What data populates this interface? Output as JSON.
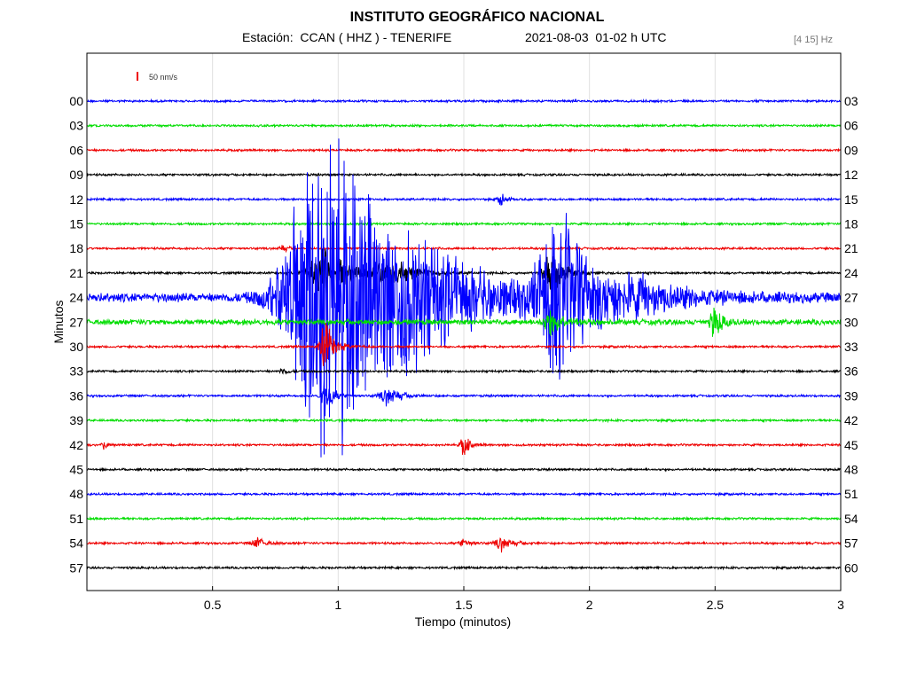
{
  "header": {
    "title": "INSTITUTO GEOGRÁFICO NACIONAL",
    "station": "Estación:  CCAN ( HHZ ) - TENERIFE",
    "datetime": "2021-08-03  01-02 h UTC",
    "filter": "[4 15] Hz"
  },
  "chart_data": {
    "type": "line",
    "title": "INSTITUTO GEOGRÁFICO NACIONAL",
    "xlabel": "Tiempo (minutos)",
    "ylabel": "Minutos",
    "xlim": [
      0,
      3
    ],
    "x_ticks": [
      "0.5",
      "1",
      "1.5",
      "2",
      "2.5",
      "3"
    ],
    "scale_bar_label": "50 nm/s",
    "left_labels": [
      "00",
      "03",
      "06",
      "09",
      "12",
      "15",
      "18",
      "21",
      "24",
      "27",
      "30",
      "33",
      "36",
      "39",
      "42",
      "45",
      "48",
      "51",
      "54",
      "57"
    ],
    "right_labels": [
      "03",
      "06",
      "09",
      "12",
      "15",
      "18",
      "21",
      "24",
      "27",
      "30",
      "33",
      "36",
      "39",
      "42",
      "45",
      "48",
      "51",
      "54",
      "57",
      "60"
    ],
    "trace_colors": [
      "#0000ff",
      "#00dd00",
      "#ee0000",
      "#000000"
    ],
    "events": [
      {
        "trace": 4,
        "center": 1.65,
        "amp": 7,
        "width": 0.03
      },
      {
        "trace": 6,
        "center": 0.78,
        "amp": 4,
        "width": 0.03
      },
      {
        "trace": 7,
        "center": 0.95,
        "amp": 30,
        "width": 0.15
      },
      {
        "trace": 7,
        "center": 1.2,
        "amp": 20,
        "width": 0.12
      },
      {
        "trace": 7,
        "center": 1.85,
        "amp": 25,
        "width": 0.08
      },
      {
        "trace": 8,
        "center": 0.95,
        "amp": 200,
        "width": 0.35
      },
      {
        "trace": 8,
        "center": 1.3,
        "amp": 40,
        "width": 0.45
      },
      {
        "trace": 8,
        "center": 1.88,
        "amp": 90,
        "width": 0.2
      },
      {
        "trace": 8,
        "center": 2.2,
        "amp": 12,
        "width": 0.35
      },
      {
        "trace": 9,
        "center": 1.85,
        "amp": 12,
        "width": 0.08
      },
      {
        "trace": 9,
        "center": 2.5,
        "amp": 20,
        "width": 0.04
      },
      {
        "trace": 10,
        "center": 0.95,
        "amp": 30,
        "width": 0.05
      },
      {
        "trace": 11,
        "center": 0.78,
        "amp": 4,
        "width": 0.03
      },
      {
        "trace": 12,
        "center": 0.95,
        "amp": 25,
        "width": 0.04
      },
      {
        "trace": 12,
        "center": 1.2,
        "amp": 10,
        "width": 0.08
      },
      {
        "trace": 14,
        "center": 0.07,
        "amp": 6,
        "width": 0.02
      },
      {
        "trace": 14,
        "center": 1.5,
        "amp": 14,
        "width": 0.03
      },
      {
        "trace": 18,
        "center": 0.68,
        "amp": 6,
        "width": 0.05
      },
      {
        "trace": 18,
        "center": 1.5,
        "amp": 5,
        "width": 0.04
      },
      {
        "trace": 18,
        "center": 1.65,
        "amp": 8,
        "width": 0.06
      }
    ]
  }
}
